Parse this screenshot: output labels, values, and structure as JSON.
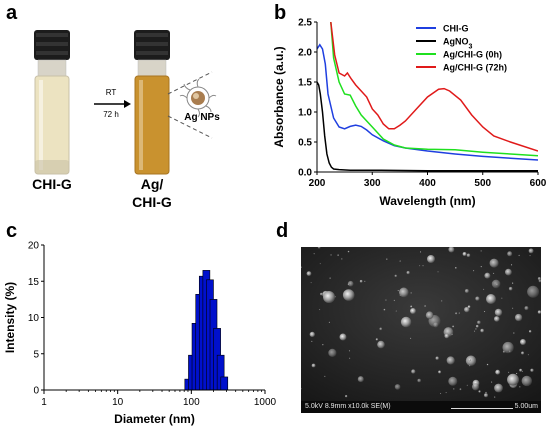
{
  "panel_a": {
    "letter": "a",
    "vial1_label": "CHI-G",
    "vial2_label_line1": "Ag/",
    "vial2_label_line2": "CHI-G",
    "arrow_top": "RT",
    "arrow_bottom": "72 h",
    "np_label": "Ag NPs",
    "vial1_liquid_color": "#ece3c1",
    "vial2_liquid_color": "#c9922f"
  },
  "panel_b": {
    "letter": "b",
    "xlabel": "Wavelength (nm)",
    "ylabel": "Absorbance (a.u.)",
    "xlim": [
      200,
      600
    ],
    "ylim": [
      0,
      2.5
    ],
    "x_ticks": [
      "200",
      "300",
      "400",
      "500",
      "600"
    ],
    "y_ticks": [
      "0.0",
      "0.5",
      "1.0",
      "1.5",
      "2.0",
      "2.5"
    ]
  },
  "chart_data": [
    {
      "type": "line",
      "xlabel": "Wavelength (nm)",
      "ylabel": "Absorbance (a.u.)",
      "xlim": [
        200,
        600
      ],
      "ylim": [
        0,
        2.5
      ],
      "legend": "top-right",
      "series": [
        {
          "name": "CHI-G",
          "color": "#1f3fe0",
          "x": [
            200,
            205,
            210,
            215,
            220,
            230,
            240,
            250,
            260,
            270,
            280,
            290,
            300,
            320,
            340,
            360,
            400,
            450,
            500,
            550,
            600
          ],
          "y": [
            2.05,
            2.12,
            2.05,
            1.8,
            1.3,
            0.9,
            0.75,
            0.72,
            0.76,
            0.78,
            0.76,
            0.7,
            0.62,
            0.52,
            0.44,
            0.4,
            0.35,
            0.3,
            0.26,
            0.23,
            0.2
          ]
        },
        {
          "name": "AgNO3",
          "color": "#000000",
          "x": [
            200,
            203,
            206,
            210,
            214,
            218,
            222,
            226,
            230,
            240,
            260,
            300,
            400,
            500,
            600
          ],
          "y": [
            1.5,
            1.45,
            1.3,
            1.0,
            0.6,
            0.3,
            0.15,
            0.08,
            0.05,
            0.04,
            0.03,
            0.03,
            0.02,
            0.02,
            0.02
          ]
        },
        {
          "name": "Ag/CHI-G (0h)",
          "color": "#1fe01f",
          "x": [
            225,
            230,
            240,
            250,
            260,
            270,
            280,
            290,
            300,
            320,
            340,
            360,
            400,
            450,
            500,
            550,
            600
          ],
          "y": [
            2.5,
            1.9,
            1.5,
            1.3,
            1.28,
            1.1,
            0.95,
            0.85,
            0.75,
            0.55,
            0.45,
            0.4,
            0.38,
            0.37,
            0.33,
            0.3,
            0.27
          ]
        },
        {
          "name": "Ag/CHI-G (72h)",
          "color": "#e01a1a",
          "x": [
            225,
            232,
            240,
            250,
            255,
            262,
            270,
            280,
            290,
            300,
            310,
            320,
            330,
            340,
            350,
            360,
            380,
            400,
            420,
            430,
            440,
            460,
            480,
            500,
            520,
            550,
            600
          ],
          "y": [
            2.5,
            1.95,
            1.65,
            1.6,
            1.65,
            1.55,
            1.45,
            1.35,
            1.25,
            1.05,
            0.95,
            0.8,
            0.72,
            0.72,
            0.78,
            0.85,
            1.05,
            1.25,
            1.38,
            1.39,
            1.35,
            1.2,
            0.95,
            0.75,
            0.6,
            0.5,
            0.35
          ]
        }
      ]
    },
    {
      "type": "bar",
      "xlabel": "Diameter (nm)",
      "ylabel": "Intensity (%)",
      "xscale": "log",
      "xlim": [
        1,
        1000
      ],
      "ylim": [
        0,
        20
      ],
      "color": "#0010cc",
      "bins": [
        {
          "x": 91,
          "y": 1.5
        },
        {
          "x": 102,
          "y": 4.8
        },
        {
          "x": 114,
          "y": 9.2
        },
        {
          "x": 128,
          "y": 13.2
        },
        {
          "x": 143,
          "y": 15.7
        },
        {
          "x": 160,
          "y": 16.5
        },
        {
          "x": 179,
          "y": 15.2
        },
        {
          "x": 200,
          "y": 12.5
        },
        {
          "x": 224,
          "y": 8.5
        },
        {
          "x": 250,
          "y": 4.8
        },
        {
          "x": 280,
          "y": 1.8
        }
      ]
    }
  ],
  "panel_c": {
    "letter": "c",
    "xlabel": "Diameter (nm)",
    "ylabel": "Intensity (%)",
    "x_ticks": [
      "1",
      "10",
      "100",
      "1000"
    ],
    "y_ticks": [
      "0",
      "5",
      "10",
      "15",
      "20"
    ]
  },
  "panel_d": {
    "letter": "d",
    "info_bar_left": "5.0kV 8.9mm x10.0k SE(M)",
    "info_bar_right": "5.00um"
  }
}
